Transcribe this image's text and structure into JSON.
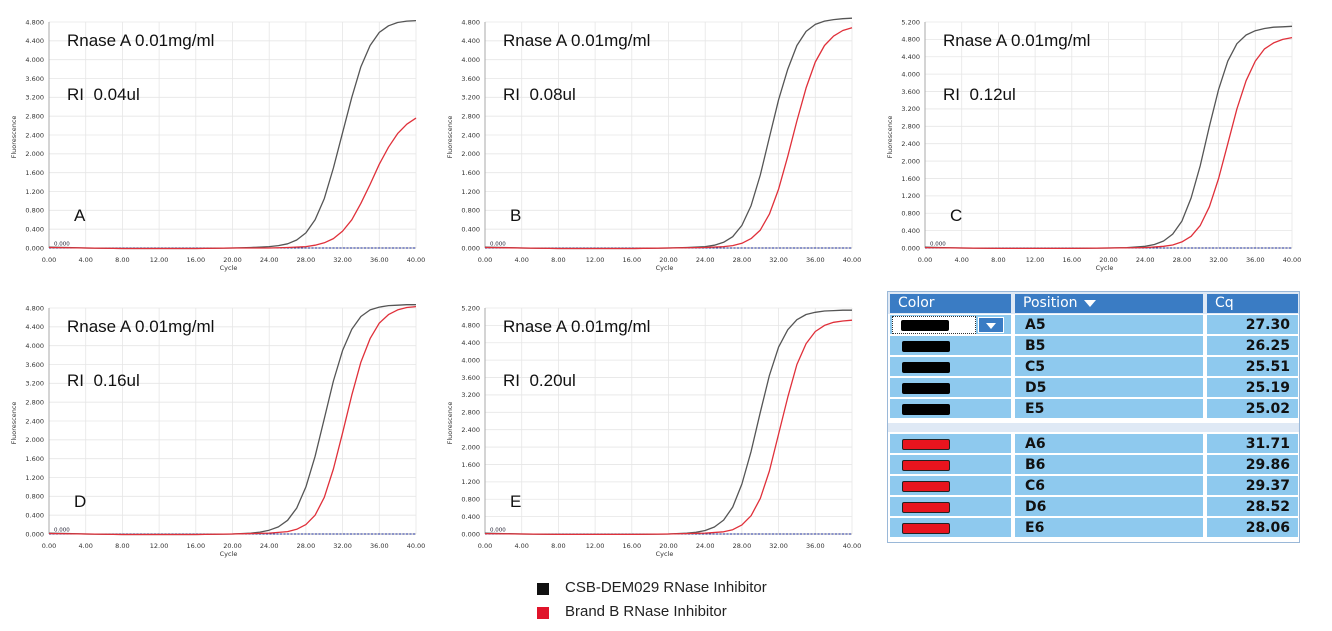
{
  "chart_data": [
    {
      "type": "line",
      "panel_letter": "A",
      "annotations": [
        "Rnase A 0.01mg/ml",
        "RI  0.04ul"
      ],
      "xlabel": "Cycle",
      "ylabel": "Fluorescence",
      "xlim": [
        0,
        40
      ],
      "ylim": [
        0,
        4.8
      ],
      "x_ticks": [
        "0.00",
        "4.00",
        "8.00",
        "12.00",
        "16.00",
        "20.00",
        "24.00",
        "28.00",
        "32.00",
        "36.00",
        "40.00"
      ],
      "y_ticks": [
        "0.000",
        "0.400",
        "0.800",
        "1.200",
        "1.600",
        "2.000",
        "2.400",
        "2.800",
        "3.200",
        "3.600",
        "4.000",
        "4.400",
        "4.800"
      ],
      "threshold_label": "0.000",
      "threshold": 0.0,
      "series": [
        {
          "name": "CSB-DEM029 RNase Inhibitor",
          "color": "#555555",
          "x": [
            0,
            2,
            4,
            8,
            12,
            16,
            20,
            22,
            24,
            25,
            26,
            27,
            28,
            29,
            30,
            31,
            32,
            33,
            34,
            35,
            36,
            37,
            38,
            39,
            40
          ],
          "values": [
            0.02,
            0.01,
            0.0,
            -0.01,
            -0.01,
            -0.01,
            0.0,
            0.01,
            0.03,
            0.05,
            0.09,
            0.17,
            0.32,
            0.6,
            1.05,
            1.7,
            2.45,
            3.2,
            3.85,
            4.3,
            4.58,
            4.72,
            4.79,
            4.82,
            4.83
          ]
        },
        {
          "name": "Brand B RNase Inhibitor",
          "color": "#e0303a",
          "x": [
            0,
            4,
            8,
            12,
            16,
            20,
            24,
            26,
            28,
            29,
            30,
            31,
            32,
            33,
            34,
            35,
            36,
            37,
            38,
            39,
            40
          ],
          "values": [
            0.01,
            0.0,
            -0.01,
            -0.01,
            -0.01,
            0.0,
            0.0,
            0.01,
            0.03,
            0.06,
            0.11,
            0.2,
            0.36,
            0.6,
            0.95,
            1.35,
            1.78,
            2.14,
            2.43,
            2.63,
            2.76
          ]
        }
      ]
    },
    {
      "type": "line",
      "panel_letter": "B",
      "annotations": [
        "Rnase A 0.01mg/ml",
        "RI  0.08ul"
      ],
      "xlabel": "Cycle",
      "ylabel": "Fluorescence",
      "xlim": [
        0,
        40
      ],
      "ylim": [
        0,
        4.8
      ],
      "x_ticks": [
        "0.00",
        "4.00",
        "8.00",
        "12.00",
        "16.00",
        "20.00",
        "24.00",
        "28.00",
        "32.00",
        "36.00",
        "40.00"
      ],
      "y_ticks": [
        "0.000",
        "0.400",
        "0.800",
        "1.200",
        "1.600",
        "2.000",
        "2.400",
        "2.800",
        "3.200",
        "3.600",
        "4.000",
        "4.400",
        "4.800"
      ],
      "threshold_label": "0.000",
      "threshold": 0.0,
      "series": [
        {
          "name": "CSB-DEM029 RNase Inhibitor",
          "color": "#555555",
          "x": [
            0,
            2,
            4,
            8,
            12,
            16,
            20,
            22,
            24,
            25,
            26,
            27,
            28,
            29,
            30,
            31,
            32,
            33,
            34,
            35,
            36,
            37,
            38,
            39,
            40
          ],
          "values": [
            0.02,
            0.01,
            0.0,
            -0.01,
            -0.01,
            -0.01,
            0.0,
            0.01,
            0.03,
            0.06,
            0.12,
            0.24,
            0.48,
            0.9,
            1.55,
            2.35,
            3.15,
            3.8,
            4.3,
            4.6,
            4.75,
            4.82,
            4.85,
            4.87,
            4.88
          ]
        },
        {
          "name": "Brand B RNase Inhibitor",
          "color": "#e0303a",
          "x": [
            0,
            4,
            8,
            12,
            16,
            20,
            24,
            26,
            27,
            28,
            29,
            30,
            31,
            32,
            33,
            34,
            35,
            36,
            37,
            38,
            39,
            40
          ],
          "values": [
            0.01,
            0.0,
            -0.01,
            -0.01,
            -0.01,
            0.0,
            0.01,
            0.03,
            0.05,
            0.1,
            0.2,
            0.38,
            0.72,
            1.25,
            1.95,
            2.7,
            3.4,
            3.95,
            4.3,
            4.5,
            4.62,
            4.68
          ]
        }
      ]
    },
    {
      "type": "line",
      "panel_letter": "C",
      "annotations": [
        "Rnase A 0.01mg/ml",
        "RI  0.12ul"
      ],
      "xlabel": "Cycle",
      "ylabel": "Fluorescence",
      "xlim": [
        0,
        40
      ],
      "ylim": [
        0,
        5.2
      ],
      "x_ticks": [
        "0.00",
        "4.00",
        "8.00",
        "12.00",
        "16.00",
        "20.00",
        "24.00",
        "28.00",
        "32.00",
        "36.00",
        "40.00"
      ],
      "y_ticks": [
        "0.000",
        "0.400",
        "0.800",
        "1.200",
        "1.600",
        "2.000",
        "2.400",
        "2.800",
        "3.200",
        "3.600",
        "4.000",
        "4.400",
        "4.800",
        "5.200"
      ],
      "threshold_label": "0.000",
      "threshold": 0.0,
      "series": [
        {
          "name": "CSB-DEM029 RNase Inhibitor",
          "color": "#555555",
          "x": [
            0,
            2,
            4,
            8,
            12,
            16,
            20,
            22,
            24,
            25,
            26,
            27,
            28,
            29,
            30,
            31,
            32,
            33,
            34,
            35,
            36,
            37,
            38,
            39,
            40
          ],
          "values": [
            0.02,
            0.01,
            0.0,
            -0.01,
            -0.01,
            -0.01,
            0.0,
            0.01,
            0.04,
            0.08,
            0.16,
            0.32,
            0.62,
            1.15,
            1.9,
            2.8,
            3.65,
            4.3,
            4.7,
            4.9,
            5.0,
            5.05,
            5.08,
            5.09,
            5.1
          ]
        },
        {
          "name": "Brand B RNase Inhibitor",
          "color": "#e0303a",
          "x": [
            0,
            4,
            8,
            12,
            16,
            20,
            24,
            26,
            27,
            28,
            29,
            30,
            31,
            32,
            33,
            34,
            35,
            36,
            37,
            38,
            39,
            40
          ],
          "values": [
            0.01,
            0.0,
            -0.01,
            -0.01,
            -0.01,
            0.0,
            0.01,
            0.04,
            0.07,
            0.14,
            0.27,
            0.52,
            0.95,
            1.6,
            2.4,
            3.2,
            3.85,
            4.3,
            4.58,
            4.72,
            4.8,
            4.84
          ]
        }
      ]
    },
    {
      "type": "line",
      "panel_letter": "D",
      "annotations": [
        "Rnase A 0.01mg/ml",
        "RI  0.16ul"
      ],
      "xlabel": "Cycle",
      "ylabel": "Fluorescence",
      "xlim": [
        0,
        40
      ],
      "ylim": [
        0,
        4.8
      ],
      "x_ticks": [
        "0.00",
        "4.00",
        "8.00",
        "12.00",
        "16.00",
        "20.00",
        "24.00",
        "28.00",
        "32.00",
        "36.00",
        "40.00"
      ],
      "y_ticks": [
        "0.000",
        "0.400",
        "0.800",
        "1.200",
        "1.600",
        "2.000",
        "2.400",
        "2.800",
        "3.200",
        "3.600",
        "4.000",
        "4.400",
        "4.800"
      ],
      "threshold_label": "0.000",
      "threshold": 0.0,
      "series": [
        {
          "name": "CSB-DEM029 RNase Inhibitor",
          "color": "#555555",
          "x": [
            0,
            2,
            4,
            8,
            12,
            16,
            20,
            22,
            23,
            24,
            25,
            26,
            27,
            28,
            29,
            30,
            31,
            32,
            33,
            34,
            35,
            36,
            37,
            38,
            39,
            40
          ],
          "values": [
            0.02,
            0.01,
            0.0,
            -0.01,
            -0.01,
            -0.01,
            0.0,
            0.02,
            0.04,
            0.08,
            0.15,
            0.29,
            0.55,
            1.0,
            1.65,
            2.45,
            3.25,
            3.9,
            4.35,
            4.62,
            4.76,
            4.82,
            4.85,
            4.86,
            4.87,
            4.87
          ]
        },
        {
          "name": "Brand B RNase Inhibitor",
          "color": "#e0303a",
          "x": [
            0,
            4,
            8,
            12,
            16,
            20,
            24,
            26,
            27,
            28,
            29,
            30,
            31,
            32,
            33,
            34,
            35,
            36,
            37,
            38,
            39,
            40
          ],
          "values": [
            0.01,
            0.0,
            -0.01,
            -0.01,
            -0.01,
            0.0,
            0.02,
            0.05,
            0.1,
            0.2,
            0.4,
            0.78,
            1.38,
            2.15,
            2.95,
            3.65,
            4.15,
            4.48,
            4.66,
            4.76,
            4.81,
            4.83
          ]
        }
      ]
    },
    {
      "type": "line",
      "panel_letter": "E",
      "annotations": [
        "Rnase A 0.01mg/ml",
        "RI  0.20ul"
      ],
      "xlabel": "Cycle",
      "ylabel": "Fluorescence",
      "xlim": [
        0,
        40
      ],
      "ylim": [
        0,
        5.2
      ],
      "x_ticks": [
        "0.00",
        "4.00",
        "8.00",
        "12.00",
        "16.00",
        "20.00",
        "24.00",
        "28.00",
        "32.00",
        "36.00",
        "40.00"
      ],
      "y_ticks": [
        "0.000",
        "0.400",
        "0.800",
        "1.200",
        "1.600",
        "2.000",
        "2.400",
        "2.800",
        "3.200",
        "3.600",
        "4.000",
        "4.400",
        "4.800",
        "5.200"
      ],
      "threshold_label": "0.000",
      "threshold": 0.0,
      "series": [
        {
          "name": "CSB-DEM029 RNase Inhibitor",
          "color": "#555555",
          "x": [
            0,
            2,
            4,
            8,
            12,
            16,
            20,
            22,
            23,
            24,
            25,
            26,
            27,
            28,
            29,
            30,
            31,
            32,
            33,
            34,
            35,
            36,
            37,
            38,
            39,
            40
          ],
          "values": [
            0.02,
            0.01,
            0.0,
            -0.01,
            -0.01,
            -0.01,
            0.0,
            0.02,
            0.04,
            0.08,
            0.16,
            0.32,
            0.62,
            1.15,
            1.9,
            2.8,
            3.65,
            4.3,
            4.7,
            4.93,
            5.05,
            5.1,
            5.13,
            5.14,
            5.15,
            5.15
          ]
        },
        {
          "name": "Brand B RNase Inhibitor",
          "color": "#e0303a",
          "x": [
            0,
            4,
            8,
            12,
            16,
            20,
            24,
            26,
            27,
            28,
            29,
            30,
            31,
            32,
            33,
            34,
            35,
            36,
            37,
            38,
            39,
            40
          ],
          "values": [
            0.01,
            0.0,
            -0.01,
            -0.01,
            -0.01,
            0.0,
            0.02,
            0.05,
            0.1,
            0.21,
            0.42,
            0.82,
            1.45,
            2.3,
            3.15,
            3.9,
            4.38,
            4.66,
            4.8,
            4.87,
            4.9,
            4.92
          ]
        }
      ]
    }
  ],
  "table": {
    "headers": [
      "Color",
      "Position",
      "Cq"
    ],
    "group1": [
      {
        "color": "black",
        "position": "A5",
        "cq": "27.30"
      },
      {
        "color": "black",
        "position": "B5",
        "cq": "26.25"
      },
      {
        "color": "black",
        "position": "C5",
        "cq": "25.51"
      },
      {
        "color": "black",
        "position": "D5",
        "cq": "25.19"
      },
      {
        "color": "black",
        "position": "E5",
        "cq": "25.02"
      }
    ],
    "group2": [
      {
        "color": "red",
        "position": "A6",
        "cq": "31.71"
      },
      {
        "color": "red",
        "position": "B6",
        "cq": "29.86"
      },
      {
        "color": "red",
        "position": "C6",
        "cq": "29.37"
      },
      {
        "color": "red",
        "position": "D6",
        "cq": "28.52"
      },
      {
        "color": "red",
        "position": "E6",
        "cq": "28.06"
      }
    ]
  },
  "legend": [
    {
      "label": "CSB-DEM029 RNase Inhibitor",
      "color": "#111111"
    },
    {
      "label": "Brand B RNase Inhibitor",
      "color": "#e0142a"
    }
  ]
}
